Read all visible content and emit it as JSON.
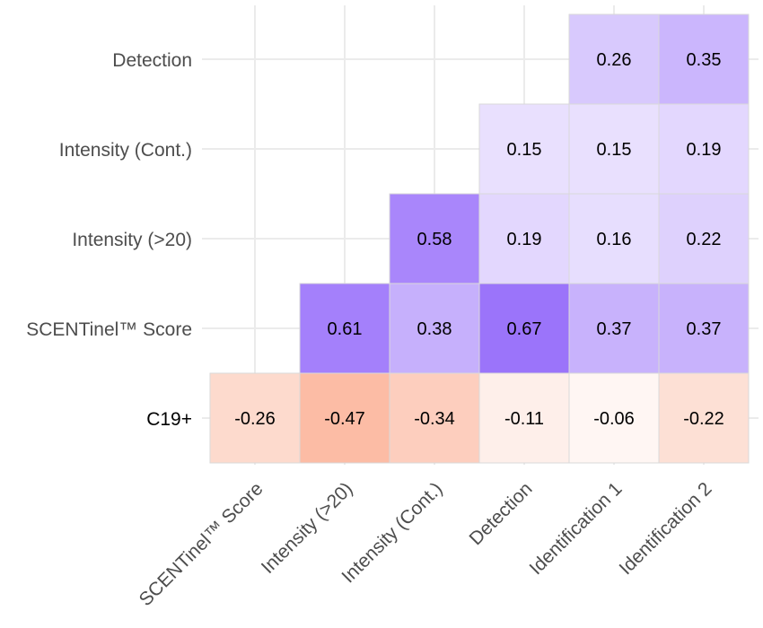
{
  "chart_data": {
    "type": "heatmap",
    "title": "",
    "xlabel": "",
    "ylabel": "",
    "x_categories": [
      "SCENTinel™ Score",
      "Intensity (>20)",
      "Intensity (Cont.)",
      "Detection",
      "Identification 1",
      "Identification 2"
    ],
    "y_categories": [
      "C19+",
      "SCENTinel™ Score",
      "Intensity (>20)",
      "Intensity (Cont.)",
      "Detection"
    ],
    "cells": [
      {
        "row": "Detection",
        "col": "Identification 1",
        "value": 0.26,
        "label": "0.26"
      },
      {
        "row": "Detection",
        "col": "Identification 2",
        "value": 0.35,
        "label": "0.35"
      },
      {
        "row": "Intensity (Cont.)",
        "col": "Detection",
        "value": 0.15,
        "label": "0.15"
      },
      {
        "row": "Intensity (Cont.)",
        "col": "Identification 1",
        "value": 0.15,
        "label": "0.15"
      },
      {
        "row": "Intensity (Cont.)",
        "col": "Identification 2",
        "value": 0.19,
        "label": "0.19"
      },
      {
        "row": "Intensity (>20)",
        "col": "Intensity (Cont.)",
        "value": 0.58,
        "label": "0.58"
      },
      {
        "row": "Intensity (>20)",
        "col": "Detection",
        "value": 0.19,
        "label": "0.19"
      },
      {
        "row": "Intensity (>20)",
        "col": "Identification 1",
        "value": 0.16,
        "label": "0.16"
      },
      {
        "row": "Intensity (>20)",
        "col": "Identification 2",
        "value": 0.22,
        "label": "0.22"
      },
      {
        "row": "SCENTinel™ Score",
        "col": "Intensity (>20)",
        "value": 0.61,
        "label": "0.61"
      },
      {
        "row": "SCENTinel™ Score",
        "col": "Intensity (Cont.)",
        "value": 0.38,
        "label": "0.38"
      },
      {
        "row": "SCENTinel™ Score",
        "col": "Detection",
        "value": 0.67,
        "label": "0.67"
      },
      {
        "row": "SCENTinel™ Score",
        "col": "Identification 1",
        "value": 0.37,
        "label": "0.37"
      },
      {
        "row": "SCENTinel™ Score",
        "col": "Identification 2",
        "value": 0.37,
        "label": "0.37"
      },
      {
        "row": "C19+",
        "col": "SCENTinel™ Score",
        "value": -0.26,
        "label": "-0.26"
      },
      {
        "row": "C19+",
        "col": "Intensity (>20)",
        "value": -0.47,
        "label": "-0.47"
      },
      {
        "row": "C19+",
        "col": "Intensity (Cont.)",
        "value": -0.34,
        "label": "-0.34"
      },
      {
        "row": "C19+",
        "col": "Detection",
        "value": -0.11,
        "label": "-0.11"
      },
      {
        "row": "C19+",
        "col": "Identification 1",
        "value": -0.06,
        "label": "-0.06"
      },
      {
        "row": "C19+",
        "col": "Identification 2",
        "value": -0.22,
        "label": "-0.22"
      }
    ],
    "color_scale": {
      "negative": "#f8703f",
      "zero": "#ffffff",
      "positive": "#6a2ff8",
      "range": [
        -1,
        1
      ]
    },
    "grid": true,
    "legend": "none"
  }
}
